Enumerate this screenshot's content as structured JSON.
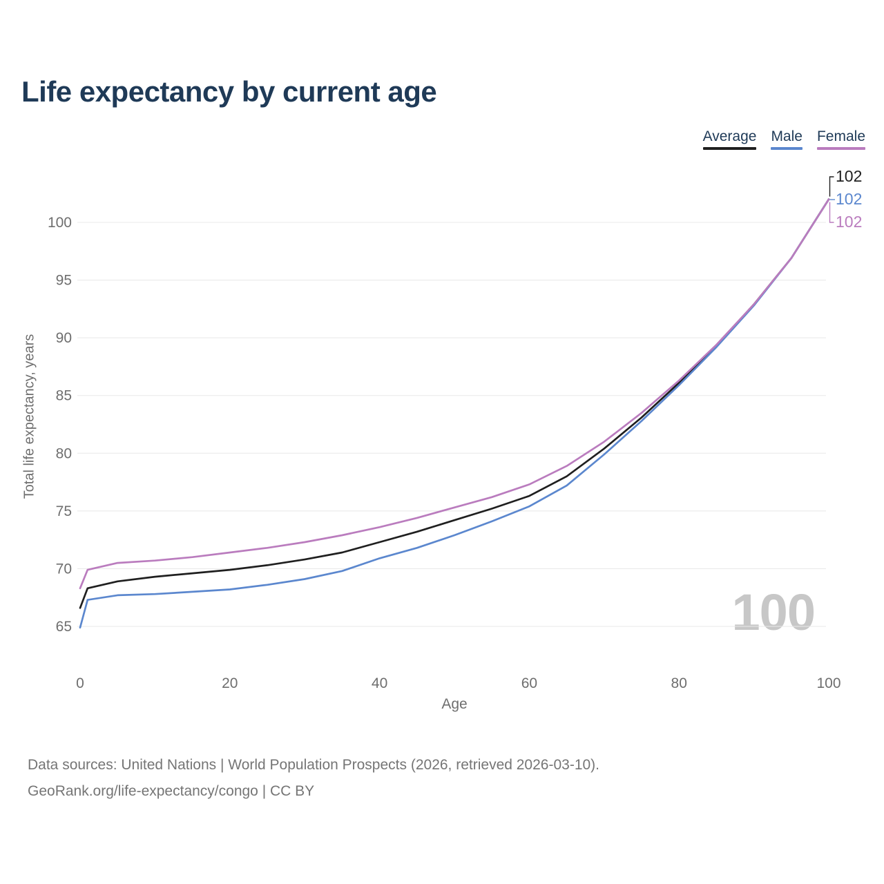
{
  "header": {
    "title": "Life expectancy by current age"
  },
  "chart_data": {
    "type": "line",
    "title": "Life expectancy by current age",
    "xlabel": "Age",
    "ylabel": "Total life expectancy, years",
    "watermark": "100",
    "xlim": [
      0,
      100
    ],
    "ylim": [
      65,
      102
    ],
    "x_ticks": [
      0,
      20,
      40,
      60,
      80,
      100
    ],
    "y_ticks": [
      65,
      70,
      75,
      80,
      85,
      90,
      95,
      100
    ],
    "grid": "horizontal",
    "legend_position": "top-right",
    "x": [
      0,
      1,
      5,
      10,
      15,
      20,
      25,
      30,
      35,
      40,
      45,
      50,
      55,
      60,
      65,
      70,
      75,
      80,
      85,
      90,
      95,
      100
    ],
    "series": [
      {
        "name": "Average",
        "color": "#1f1f1f",
        "end_label": "102",
        "values": [
          66.6,
          68.3,
          68.9,
          69.3,
          69.6,
          69.9,
          70.3,
          70.8,
          71.4,
          72.3,
          73.2,
          74.2,
          75.2,
          76.3,
          78.0,
          80.4,
          83.1,
          86.1,
          89.3,
          92.9,
          96.9,
          102.0
        ]
      },
      {
        "name": "Male",
        "color": "#5b87ce",
        "end_label": "102",
        "values": [
          64.9,
          67.3,
          67.7,
          67.8,
          68.0,
          68.2,
          68.6,
          69.1,
          69.8,
          70.9,
          71.8,
          72.9,
          74.1,
          75.4,
          77.2,
          79.9,
          82.8,
          85.9,
          89.2,
          92.8,
          96.9,
          102.0
        ]
      },
      {
        "name": "Female",
        "color": "#ba7cbe",
        "end_label": "102",
        "values": [
          68.3,
          69.9,
          70.5,
          70.7,
          71.0,
          71.4,
          71.8,
          72.3,
          72.9,
          73.6,
          74.4,
          75.3,
          76.2,
          77.3,
          78.9,
          81.0,
          83.5,
          86.3,
          89.4,
          92.9,
          96.9,
          102.0
        ]
      }
    ]
  },
  "footer": {
    "line1": "Data sources: United Nations | World Population Prospects (2026, retrieved 2026-03-10).",
    "line2": "GeoRank.org/life-expectancy/congo | CC BY"
  }
}
